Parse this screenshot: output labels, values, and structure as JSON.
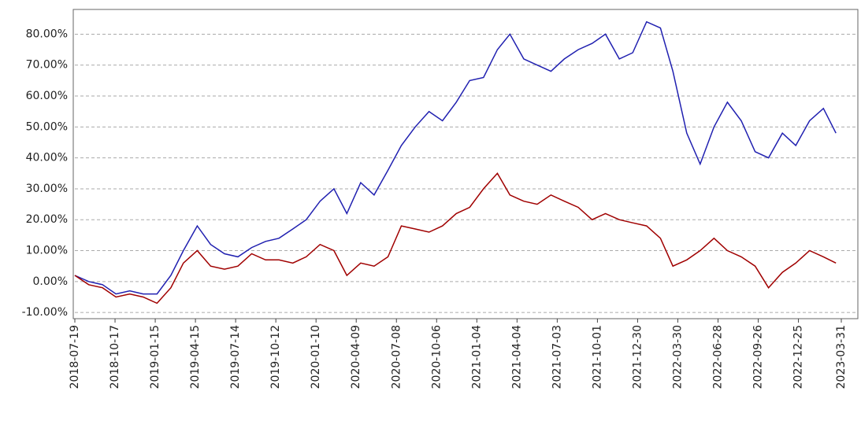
{
  "chart_data": {
    "type": "line",
    "x": [
      "2018-07-19",
      "2018-08-19",
      "2018-09-19",
      "2018-10-19",
      "2018-11-19",
      "2018-12-19",
      "2019-01-19",
      "2019-02-19",
      "2019-03-19",
      "2019-04-19",
      "2019-05-19",
      "2019-06-19",
      "2019-07-19",
      "2019-08-19",
      "2019-09-19",
      "2019-10-19",
      "2019-11-19",
      "2019-12-19",
      "2020-01-19",
      "2020-02-19",
      "2020-03-19",
      "2020-04-19",
      "2020-05-19",
      "2020-06-19",
      "2020-07-19",
      "2020-08-19",
      "2020-09-19",
      "2020-10-19",
      "2020-11-19",
      "2020-12-19",
      "2021-01-19",
      "2021-02-19",
      "2021-03-19",
      "2021-04-19",
      "2021-05-19",
      "2021-06-19",
      "2021-07-19",
      "2021-08-19",
      "2021-09-19",
      "2021-10-19",
      "2021-11-19",
      "2021-12-19",
      "2022-01-19",
      "2022-02-19",
      "2022-03-19",
      "2022-04-19",
      "2022-05-19",
      "2022-06-19",
      "2022-07-19",
      "2022-08-19",
      "2022-09-19",
      "2022-10-19",
      "2022-11-19",
      "2022-12-19",
      "2023-01-19",
      "2023-02-19",
      "2023-03-19"
    ],
    "series": [
      {
        "color": "#2020b0",
        "values": [
          2,
          0,
          -1,
          -4,
          -3,
          -4,
          -4,
          2,
          10,
          18,
          12,
          9,
          8,
          11,
          13,
          14,
          17,
          20,
          26,
          30,
          22,
          32,
          28,
          36,
          44,
          50,
          55,
          52,
          58,
          65,
          66,
          75,
          80,
          72,
          70,
          68,
          72,
          75,
          77,
          80,
          72,
          74,
          84,
          82,
          68,
          48,
          38,
          50,
          58,
          52,
          42,
          40,
          48,
          44,
          52,
          56,
          48
        ]
      },
      {
        "color": "#a00000",
        "values": [
          2,
          -1,
          -2,
          -5,
          -4,
          -5,
          -7,
          -2,
          6,
          10,
          5,
          4,
          5,
          9,
          7,
          7,
          6,
          8,
          12,
          10,
          2,
          6,
          5,
          8,
          18,
          17,
          16,
          18,
          22,
          24,
          30,
          35,
          28,
          26,
          25,
          28,
          26,
          24,
          20,
          22,
          20,
          19,
          18,
          14,
          5,
          7,
          10,
          14,
          10,
          8,
          5,
          -2,
          3,
          6,
          10,
          8,
          6
        ]
      }
    ],
    "xlim": [
      "2018-07-19",
      "2023-03-31"
    ],
    "xticks": [
      "2018-07-19",
      "2018-10-17",
      "2019-01-15",
      "2019-04-15",
      "2019-07-14",
      "2019-10-12",
      "2020-01-10",
      "2020-04-09",
      "2020-07-08",
      "2020-10-06",
      "2021-01-04",
      "2021-04-04",
      "2021-07-03",
      "2021-10-01",
      "2021-12-30",
      "2022-03-30",
      "2022-06-28",
      "2022-09-26",
      "2022-12-25",
      "2023-03-31"
    ],
    "ylim": [
      -12,
      88
    ],
    "yticks": [
      {
        "value": -10,
        "label": "-10.00%"
      },
      {
        "value": 0,
        "label": "0.00%"
      },
      {
        "value": 10,
        "label": "10.00%"
      },
      {
        "value": 20,
        "label": "20.00%"
      },
      {
        "value": 30,
        "label": "30.00%"
      },
      {
        "value": 40,
        "label": "40.00%"
      },
      {
        "value": 50,
        "label": "50.00%"
      },
      {
        "value": 60,
        "label": "60.00%"
      },
      {
        "value": 70,
        "label": "70.00%"
      },
      {
        "value": 80,
        "label": "80.00%"
      }
    ],
    "grid": true
  }
}
